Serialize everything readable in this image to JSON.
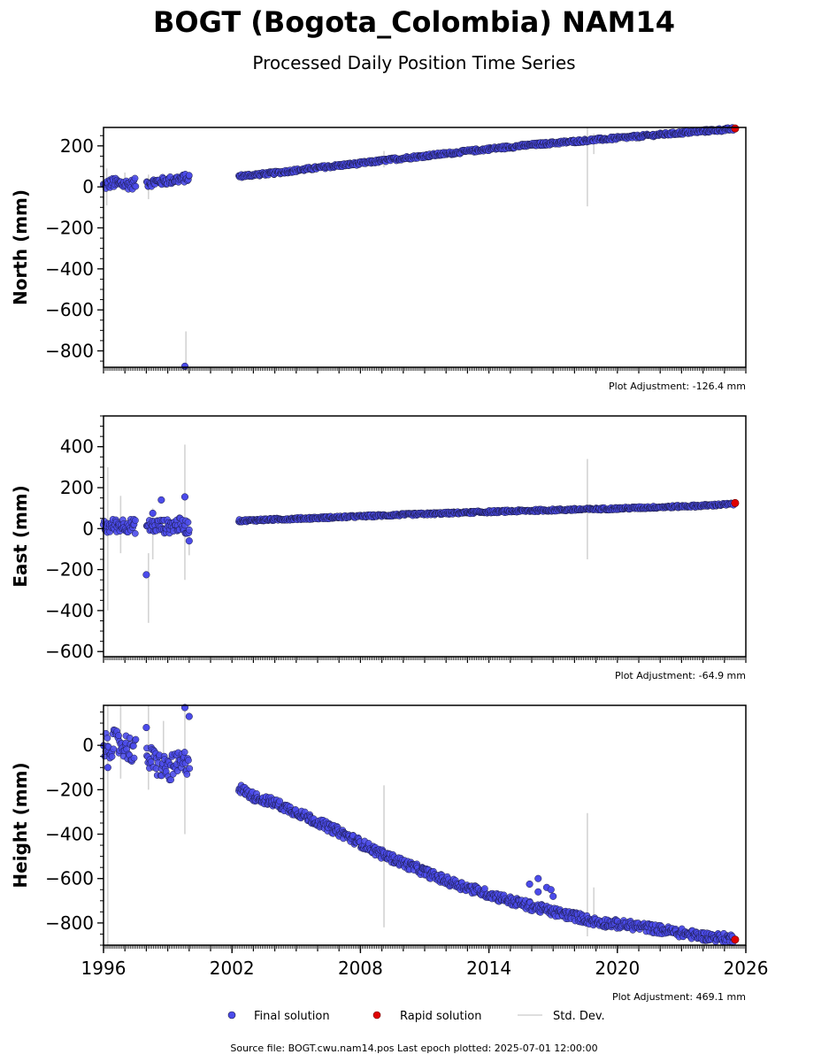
{
  "title": "BOGT (Bogota_Colombia) NAM14",
  "subtitle": "Processed Daily Position Time Series",
  "colors": {
    "final": "#4b4bea",
    "final_edge": "#1a1a40",
    "rapid": "#e00000",
    "stddev": "#d3d3d3"
  },
  "chart_data": [
    {
      "type": "scatter",
      "ylabel": "North (mm)",
      "adjustment": "Plot Adjustment: -126.4 mm",
      "xlim": [
        1996,
        2026
      ],
      "ylim": [
        -880,
        290
      ],
      "yticks": [
        200,
        0,
        -200,
        -400,
        -600,
        -800
      ],
      "ytick_labels": [
        "200",
        "0",
        "−200",
        "−400",
        "−600",
        "−800"
      ],
      "segments": [
        {
          "x": [
            1996.0,
            1996.4,
            1996.8,
            1997.3,
            1997.5
          ],
          "y": [
            5,
            20,
            15,
            12,
            18
          ],
          "spread": 25
        },
        {
          "x": [
            1998.0,
            1998.5,
            1999.0,
            1999.5,
            2000.0
          ],
          "y": [
            18,
            25,
            30,
            38,
            45
          ],
          "spread": 20
        },
        {
          "x": [
            2002.3,
            2004.0,
            2006.0,
            2008.0,
            2010.0,
            2012.0,
            2014.0,
            2016.0,
            2018.0,
            2020.0,
            2022.0,
            2024.0,
            2025.4
          ],
          "y": [
            52,
            68,
            93,
            115,
            140,
            162,
            185,
            205,
            222,
            238,
            255,
            272,
            282
          ],
          "spread": 8
        }
      ],
      "outliers": [
        {
          "x": 1999.8,
          "y": -875
        }
      ],
      "rapid": [
        {
          "x": 2025.5,
          "y": 285
        }
      ],
      "stddev": [
        {
          "x": 1996.15,
          "lo": -90,
          "hi": 90
        },
        {
          "x": 1997.0,
          "lo": -20,
          "hi": 70
        },
        {
          "x": 1998.1,
          "lo": -60,
          "hi": 60
        },
        {
          "x": 1999.85,
          "lo": -880,
          "hi": -705
        },
        {
          "x": 2009.1,
          "lo": 95,
          "hi": 175
        },
        {
          "x": 2018.6,
          "lo": -95,
          "hi": 290
        },
        {
          "x": 2018.9,
          "lo": 160,
          "hi": 260
        }
      ]
    },
    {
      "type": "scatter",
      "ylabel": "East (mm)",
      "adjustment": "Plot Adjustment: -64.9 mm",
      "xlim": [
        1996,
        2026
      ],
      "ylim": [
        -625,
        550
      ],
      "yticks": [
        400,
        200,
        0,
        -200,
        -400,
        -600
      ],
      "ytick_labels": [
        "400",
        "200",
        "0",
        "−200",
        "−400",
        "−600"
      ],
      "segments": [
        {
          "x": [
            1996.0,
            1996.5,
            1997.0,
            1997.5
          ],
          "y": [
            5,
            15,
            20,
            10
          ],
          "spread": 35
        },
        {
          "x": [
            1998.0,
            1998.5,
            1999.0,
            1999.5,
            2000.0
          ],
          "y": [
            10,
            15,
            10,
            20,
            5
          ],
          "spread": 35
        },
        {
          "x": [
            2002.3,
            2004.0,
            2006.0,
            2008.0,
            2010.0,
            2012.0,
            2014.0,
            2016.0,
            2018.0,
            2020.0,
            2022.0,
            2024.0,
            2025.4
          ],
          "y": [
            38,
            45,
            52,
            60,
            68,
            75,
            82,
            88,
            93,
            98,
            105,
            112,
            120
          ],
          "spread": 6
        }
      ],
      "outliers": [
        {
          "x": 1998.0,
          "y": -225
        },
        {
          "x": 1998.3,
          "y": 75
        },
        {
          "x": 1998.7,
          "y": 140
        },
        {
          "x": 1999.8,
          "y": 155
        },
        {
          "x": 2000.0,
          "y": -60
        }
      ],
      "rapid": [
        {
          "x": 2025.5,
          "y": 125
        }
      ],
      "stddev": [
        {
          "x": 1996.2,
          "lo": -400,
          "hi": 300
        },
        {
          "x": 1996.8,
          "lo": -120,
          "hi": 160
        },
        {
          "x": 1998.1,
          "lo": -460,
          "hi": -120
        },
        {
          "x": 1998.3,
          "lo": -150,
          "hi": 100
        },
        {
          "x": 1999.8,
          "lo": -250,
          "hi": 410
        },
        {
          "x": 2000.0,
          "lo": -130,
          "hi": 50
        },
        {
          "x": 2018.6,
          "lo": -150,
          "hi": 340
        }
      ]
    },
    {
      "type": "scatter",
      "ylabel": "Height (mm)",
      "adjustment": "Plot Adjustment: 469.1 mm",
      "xlim": [
        1996,
        2026
      ],
      "ylim": [
        -900,
        180
      ],
      "yticks": [
        0,
        -200,
        -400,
        -600,
        -800
      ],
      "ytick_labels": [
        "0",
        "−200",
        "−400",
        "−600",
        "−800"
      ],
      "xticks": [
        1996,
        2002,
        2008,
        2014,
        2020,
        2026
      ],
      "xtick_labels": [
        "1996",
        "2002",
        "2008",
        "2014",
        "2020",
        "2026"
      ],
      "segments": [
        {
          "x": [
            1996.0,
            1996.5,
            1997.0,
            1997.5
          ],
          "y": [
            -10,
            10,
            0,
            -30
          ],
          "spread": 60
        },
        {
          "x": [
            1998.0,
            1998.5,
            1999.0,
            1999.5,
            2000.0
          ],
          "y": [
            -50,
            -80,
            -110,
            -90,
            -70
          ],
          "spread": 60
        },
        {
          "x": [
            2002.3,
            2003.0,
            2004.0,
            2005.0,
            2006.0,
            2007.0,
            2008.0,
            2009.0,
            2010.0,
            2011.0,
            2012.0,
            2013.0,
            2014.0,
            2015.0,
            2016.0,
            2017.0,
            2018.0,
            2019.0,
            2020.0,
            2021.0,
            2022.0,
            2023.0,
            2024.0,
            2025.4
          ],
          "y": [
            -190,
            -230,
            -260,
            -300,
            -345,
            -390,
            -440,
            -490,
            -530,
            -570,
            -610,
            -640,
            -670,
            -700,
            -725,
            -750,
            -770,
            -795,
            -805,
            -815,
            -830,
            -845,
            -860,
            -870
          ],
          "spread": 20
        }
      ],
      "outliers": [
        {
          "x": 1996.2,
          "y": -100
        },
        {
          "x": 1998.0,
          "y": 80
        },
        {
          "x": 1999.8,
          "y": 170
        },
        {
          "x": 2000.0,
          "y": 130
        },
        {
          "x": 2015.9,
          "y": -625
        },
        {
          "x": 2016.3,
          "y": -600
        },
        {
          "x": 2016.3,
          "y": -660
        },
        {
          "x": 2016.7,
          "y": -640
        },
        {
          "x": 2016.9,
          "y": -650
        },
        {
          "x": 2017.0,
          "y": -680
        }
      ],
      "rapid": [
        {
          "x": 2025.5,
          "y": -875
        }
      ],
      "stddev": [
        {
          "x": 1996.2,
          "lo": -900,
          "hi": 180
        },
        {
          "x": 1996.8,
          "lo": -150,
          "hi": 180
        },
        {
          "x": 1998.1,
          "lo": -200,
          "hi": 180
        },
        {
          "x": 1998.8,
          "lo": -150,
          "hi": 110
        },
        {
          "x": 1999.8,
          "lo": -400,
          "hi": 180
        },
        {
          "x": 2009.1,
          "lo": -820,
          "hi": -180
        },
        {
          "x": 2018.6,
          "lo": -860,
          "hi": -305
        },
        {
          "x": 2018.9,
          "lo": -780,
          "hi": -640
        }
      ]
    }
  ],
  "legend": {
    "final_label": "Final solution",
    "rapid_label": "Rapid solution",
    "stddev_label": "Std. Dev."
  },
  "footer": "Source file: BOGT.cwu.nam14.pos  Last epoch plotted: 2025-07-01 12:00:00"
}
